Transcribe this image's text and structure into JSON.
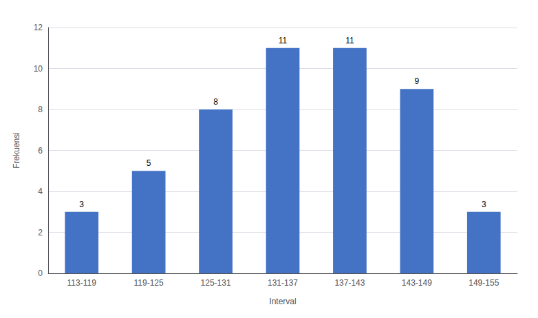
{
  "chart_data": {
    "type": "bar",
    "categories": [
      "113-119",
      "119-125",
      "125-131",
      "131-137",
      "137-143",
      "143-149",
      "149-155"
    ],
    "values": [
      3,
      5,
      8,
      11,
      11,
      9,
      3
    ],
    "color": "#4472C4",
    "xlabel": "Interval",
    "ylabel": "Frekuensi",
    "ylim": [
      0,
      12
    ],
    "yticks": [
      0,
      2,
      4,
      6,
      8,
      10,
      12
    ],
    "grid": true,
    "data_labels": true
  }
}
